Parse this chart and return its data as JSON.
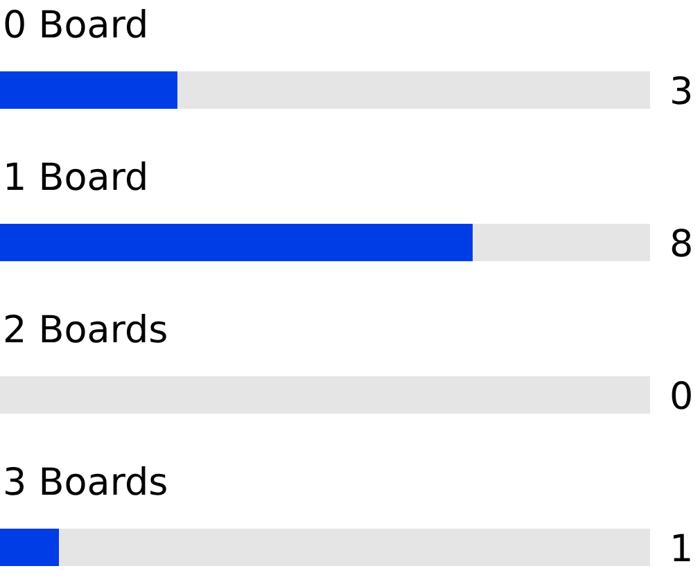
{
  "chart_data": {
    "type": "bar",
    "orientation": "horizontal",
    "stacked": true,
    "categories": [
      "0 Board",
      "1 Board",
      "2 Boards",
      "3 Boards"
    ],
    "series": [
      {
        "color": "#003de6",
        "values": [
          3,
          8,
          0,
          1
        ],
        "value_labels": [
          "3",
          "8",
          "0",
          "1"
        ]
      },
      {
        "color": "#e5e5e6",
        "values": [
          8,
          3,
          11,
          10
        ]
      }
    ],
    "xlim": [
      0,
      11
    ],
    "tick_labels": "y"
  }
}
